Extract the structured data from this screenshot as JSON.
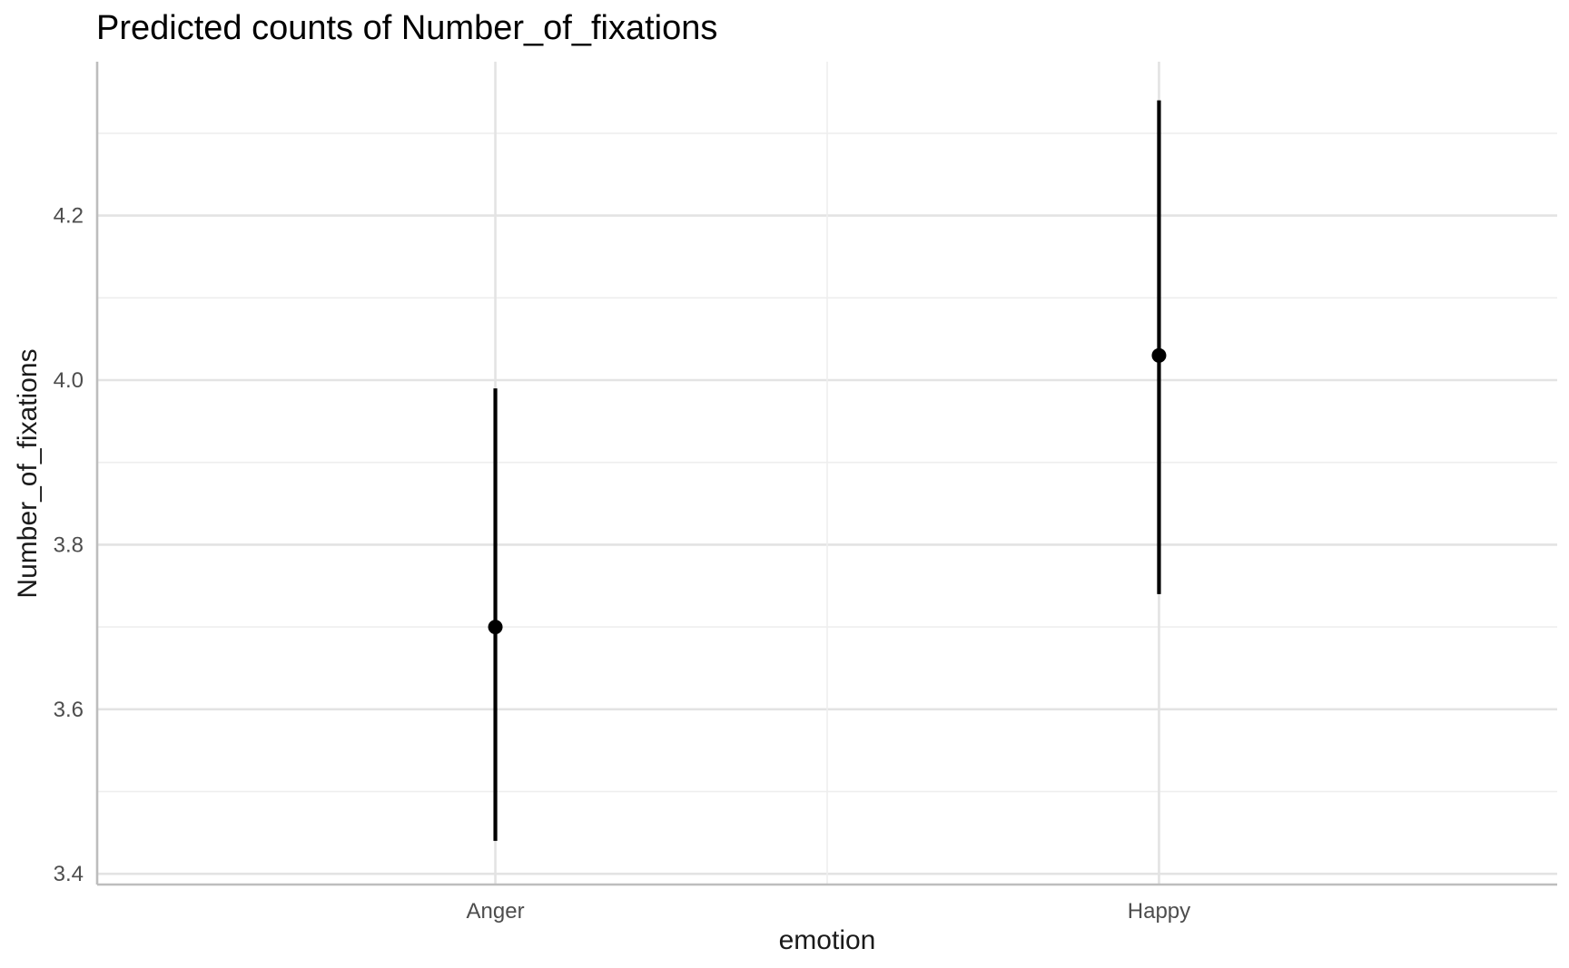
{
  "chart_data": {
    "type": "pointrange",
    "title": "Predicted counts of Number_of_fixations",
    "xlabel": "emotion",
    "ylabel": "Number_of_fixations",
    "categories": [
      "Anger",
      "Happy"
    ],
    "estimates": [
      3.7,
      4.03
    ],
    "lower": [
      3.44,
      3.74
    ],
    "upper": [
      3.99,
      4.34
    ],
    "yticks": [
      "3.4",
      "3.6",
      "3.8",
      "4.0",
      "4.2"
    ],
    "ylim": [
      3.387,
      4.387
    ],
    "grid": true,
    "colors": {
      "point": "#000000",
      "grid": "#e3e3e3",
      "axis": "#bdbdbd"
    }
  }
}
